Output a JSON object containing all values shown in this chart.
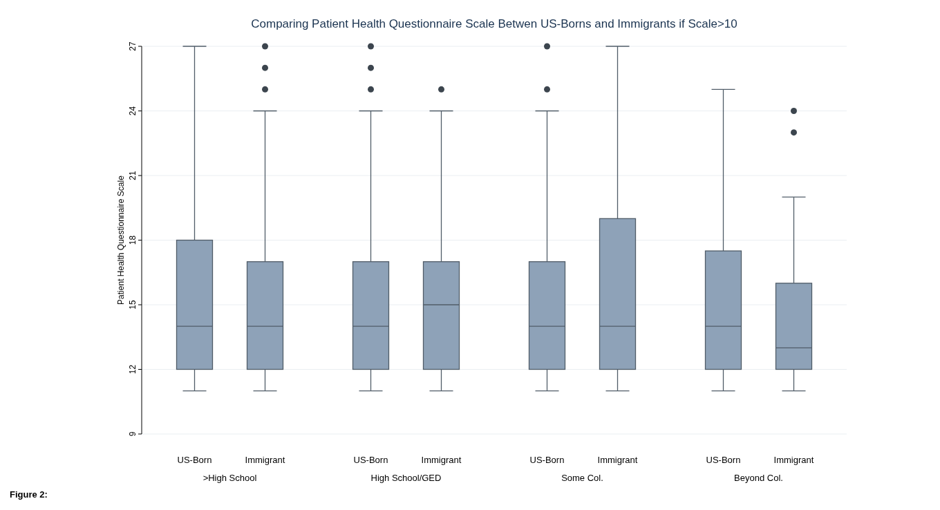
{
  "chart_data": [
    {
      "type": "box",
      "title": "Comparing Patient Health Questionnaire Scale Betwen US-Borns and Immigrants if Scale>10",
      "ylabel": "Patient Health Questionnaire Scale",
      "xlabel": ">High School",
      "categories": [
        "US-Born",
        "Immigrant"
      ],
      "ylim": [
        9,
        27
      ],
      "yticks": [
        9,
        12,
        15,
        18,
        21,
        24,
        27
      ],
      "grid": "y",
      "annotations": [
        "Figure 2:"
      ],
      "series": [
        {
          "color": "#8ea2b8",
          "boxes": [
            {
              "low": 11,
              "q1": 12,
              "median": 14,
              "q3": 18,
              "high": 27
            },
            {
              "low": 11,
              "q1": 12,
              "median": 14,
              "q3": 17,
              "high": 24,
              "outliers": [
                25,
                26,
                27
              ]
            }
          ]
        }
      ]
    },
    {
      "type": "box",
      "xlabel": "High School/GED",
      "categories": [
        "US-Born",
        "Immigrant"
      ],
      "ylim": [
        9,
        27
      ],
      "grid": "y",
      "tick_labels": "x",
      "series": [
        {
          "color": "#8ea2b8",
          "boxes": [
            {
              "low": 11,
              "q1": 12,
              "median": 14,
              "q3": 17,
              "high": 24,
              "outliers": [
                25,
                26,
                27
              ]
            },
            {
              "low": 11,
              "q1": 12,
              "median": 15,
              "q3": 17,
              "high": 24,
              "outliers": [
                25
              ]
            }
          ]
        }
      ]
    },
    {
      "type": "box",
      "xlabel": "Some Col.",
      "categories": [
        "US-Born",
        "Immigrant"
      ],
      "ylim": [
        9,
        27
      ],
      "grid": "y",
      "tick_labels": "x",
      "series": [
        {
          "color": "#8ea2b8",
          "boxes": [
            {
              "low": 11,
              "q1": 12,
              "median": 14,
              "q3": 17,
              "high": 24,
              "outliers": [
                25,
                27
              ]
            },
            {
              "low": 11,
              "q1": 12,
              "median": 14,
              "q3": 19,
              "high": 27
            }
          ]
        }
      ]
    },
    {
      "type": "box",
      "xlabel": "Beyond Col.",
      "categories": [
        "US-Born",
        "Immigrant"
      ],
      "ylim": [
        9,
        27
      ],
      "grid": "y",
      "tick_labels": "x",
      "series": [
        {
          "color": "#8ea2b8",
          "boxes": [
            {
              "low": 11,
              "q1": 12,
              "median": 14,
              "q3": 17.5,
              "high": 25
            },
            {
              "low": 11,
              "q1": 12,
              "median": 13,
              "q3": 16,
              "high": 20,
              "outliers": [
                23,
                24
              ]
            }
          ]
        }
      ]
    }
  ]
}
